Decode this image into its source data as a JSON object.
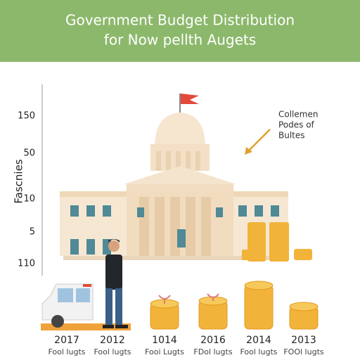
{
  "header": {
    "title_lines": [
      "Government Budget Distribution",
      "for Now pellth Augets"
    ]
  },
  "axis": {
    "title": "Fascnies",
    "labels": [
      "150",
      "50",
      "10",
      "5",
      "110"
    ]
  },
  "annotation": {
    "lines": [
      "Collemen",
      "Podes of",
      "Bultes"
    ]
  },
  "items": [
    {
      "year": "2017",
      "label": "Fool lugts"
    },
    {
      "year": "2012",
      "label": "Fool lugts"
    },
    {
      "year": "1014",
      "label": "Fooi Lugts"
    },
    {
      "year": "2016",
      "label": "FDol lugts"
    },
    {
      "year": "2014",
      "label": "Fool lugts"
    },
    {
      "year": "2013",
      "label": "FOOl lugts"
    }
  ]
}
